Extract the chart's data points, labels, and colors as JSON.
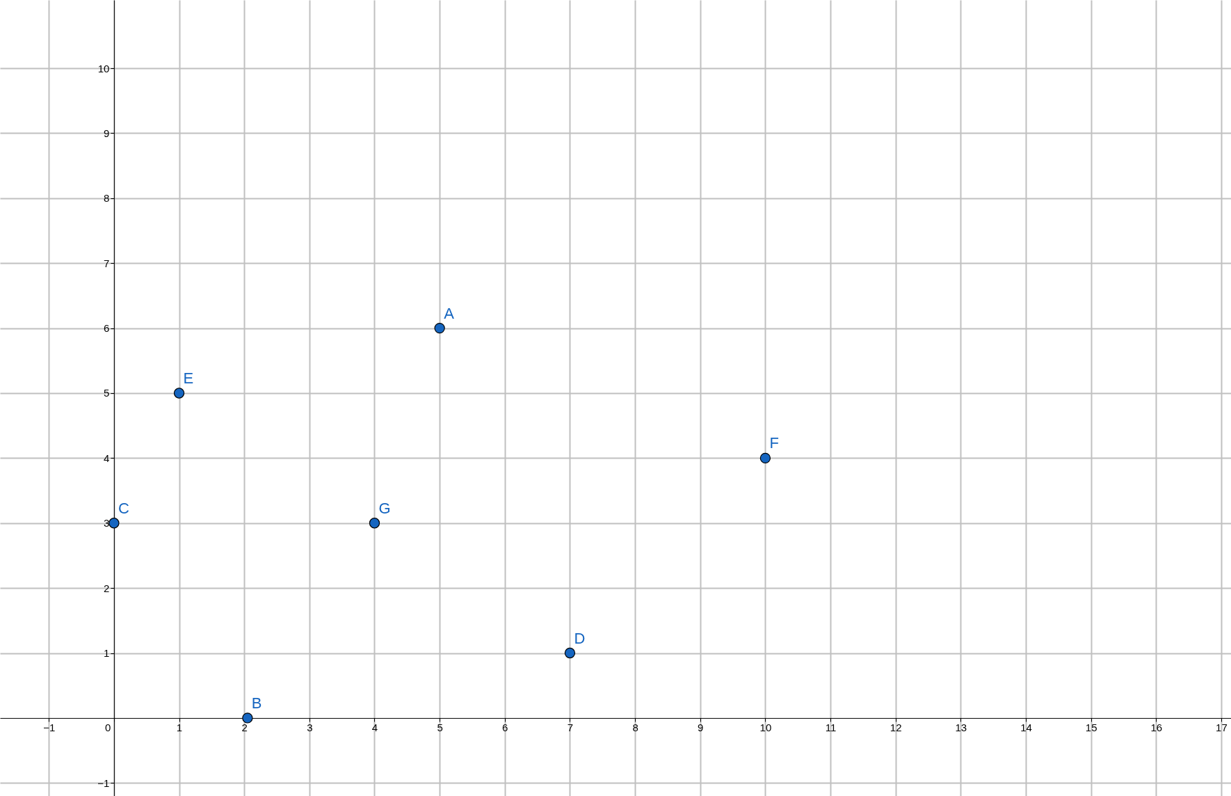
{
  "chart_data": {
    "type": "scatter",
    "x": [
      5,
      2.05,
      0,
      7,
      1,
      10,
      4
    ],
    "values": [
      6,
      0,
      3,
      1,
      5,
      4,
      3
    ],
    "color": "#1565c0",
    "marker": "circle",
    "xlim": [
      -1.75,
      17.15
    ],
    "ylim": [
      -1.2,
      11.05
    ],
    "xticks": [
      {
        "value": -1,
        "label": "−1"
      },
      0,
      1,
      2,
      3,
      4,
      5,
      6,
      7,
      8,
      9,
      10,
      11,
      12,
      13,
      14,
      15,
      16,
      17
    ],
    "yticks": [
      {
        "value": -1,
        "label": "−1"
      },
      1,
      2,
      3,
      4,
      5,
      6,
      7,
      8,
      9,
      10
    ],
    "grid": true,
    "annotations": [
      {
        "text": "A",
        "x": 5,
        "y": 6
      },
      {
        "text": "B",
        "x": 2.05,
        "y": 0
      },
      {
        "text": "C",
        "x": 0,
        "y": 3
      },
      {
        "text": "D",
        "x": 7,
        "y": 1
      },
      {
        "text": "E",
        "x": 1,
        "y": 5
      },
      {
        "text": "F",
        "x": 10,
        "y": 4
      },
      {
        "text": "G",
        "x": 4,
        "y": 3
      }
    ]
  }
}
